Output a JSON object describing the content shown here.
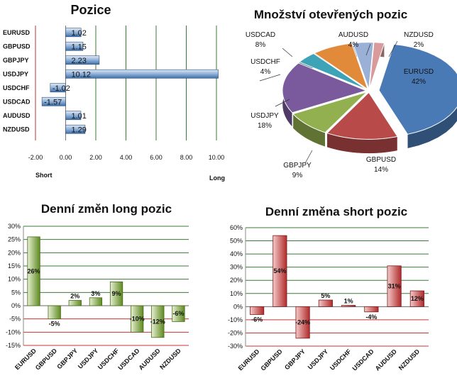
{
  "chart_data": [
    {
      "type": "bar",
      "orientation": "horizontal",
      "title": "Pozice",
      "categories": [
        "EURUSD",
        "GBPUSD",
        "GBPJPY",
        "USDJPY",
        "USDCHF",
        "USDCAD",
        "AUDUSD",
        "NZDUSD"
      ],
      "values": [
        1.02,
        1.15,
        2.23,
        10.12,
        -1.02,
        -1.57,
        1.01,
        1.29
      ],
      "value_labels": [
        "1.02",
        "1.15",
        "2.23",
        "10.12",
        "-1.02",
        "-1.57",
        "1.01",
        "1.29"
      ],
      "xlim": [
        -2,
        10
      ],
      "x_ticks": [
        "-2.00",
        "0.00",
        "2.00",
        "4.00",
        "6.00",
        "8.00",
        "10.00"
      ],
      "left_label": "Short",
      "right_label": "Long",
      "color": "#3d6ea8"
    },
    {
      "type": "pie",
      "title": "Množství otevřených pozic",
      "slices": [
        {
          "label": "EURUSD",
          "pct_label": "42%",
          "value": 42,
          "color": "#4a7ab5"
        },
        {
          "label": "GBPUSD",
          "pct_label": "14%",
          "value": 14,
          "color": "#b84a4a"
        },
        {
          "label": "GBPJPY",
          "pct_label": "9%",
          "value": 9,
          "color": "#93b050"
        },
        {
          "label": "USDJPY",
          "pct_label": "18%",
          "value": 18,
          "color": "#7a5a9c"
        },
        {
          "label": "USDCHF",
          "pct_label": "4%",
          "value": 4,
          "color": "#3fa3b8"
        },
        {
          "label": "USDCAD",
          "pct_label": "8%",
          "value": 8,
          "color": "#e08a3a"
        },
        {
          "label": "AUDUSD",
          "pct_label": "4%",
          "value": 4,
          "color": "#9ab0d6"
        },
        {
          "label": "NZDUSD",
          "pct_label": "2%",
          "value": 2,
          "color": "#d89a9a"
        }
      ]
    },
    {
      "type": "bar",
      "title": "Denní změn long pozic",
      "categories": [
        "EURUSD",
        "GBPUSD",
        "GBPJPY",
        "USDJPY",
        "USDCHF",
        "USDCAD",
        "AUDUSD",
        "NZDUSD"
      ],
      "values": [
        26,
        -5,
        2,
        3,
        9,
        -10,
        -12,
        -6
      ],
      "value_labels": [
        "26%",
        "-5%",
        "2%",
        "3%",
        "9%",
        "-10%",
        "-12%",
        "-6%"
      ],
      "ylim": [
        -15,
        30
      ],
      "y_ticks": [
        "-15%",
        "-10%",
        "-5%",
        "0%",
        "5%",
        "10%",
        "15%",
        "20%",
        "25%",
        "30%"
      ],
      "y_tick_values": [
        -15,
        -10,
        -5,
        0,
        5,
        10,
        15,
        20,
        25,
        30
      ],
      "color": "#6f9a2e"
    },
    {
      "type": "bar",
      "title": "Denní změna short pozic",
      "categories": [
        "EURUSD",
        "GBPUSD",
        "GBPJPY",
        "USDJPY",
        "USDCHF",
        "USDCAD",
        "AUDUSD",
        "NZDUSD"
      ],
      "values": [
        -6,
        54,
        -24,
        5,
        1,
        -4,
        31,
        12
      ],
      "value_labels": [
        "-6%",
        "54%",
        "-24%",
        "5%",
        "1%",
        "-4%",
        "31%",
        "12%"
      ],
      "ylim": [
        -30,
        60
      ],
      "y_ticks": [
        "-30%",
        "-20%",
        "-10%",
        "0%",
        "10%",
        "20%",
        "30%",
        "40%",
        "50%",
        "60%"
      ],
      "y_tick_values": [
        -30,
        -20,
        -10,
        0,
        10,
        20,
        30,
        40,
        50,
        60
      ],
      "color": "#c23b3b"
    }
  ]
}
